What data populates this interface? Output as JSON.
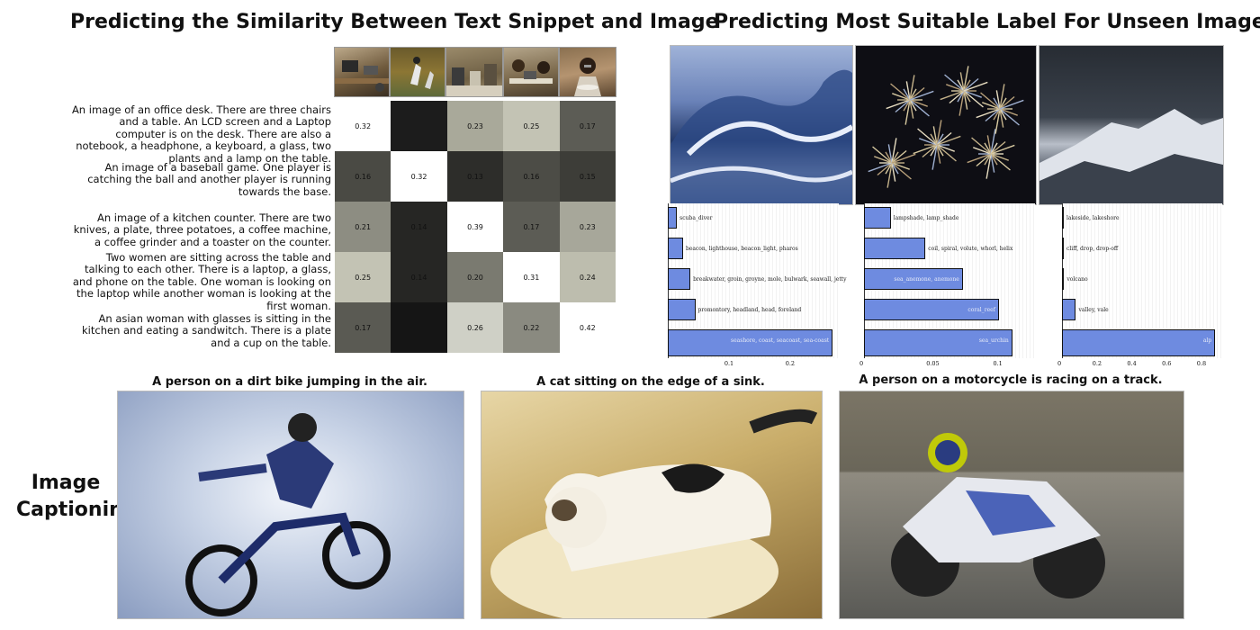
{
  "titles": {
    "similarity": "Predicting the Similarity Between Text Snippet and Image",
    "labels": "Predicting Most Suitable Label For Unseen Image",
    "captioning_line1": "Image",
    "captioning_line2": "Captioning"
  },
  "similarity": {
    "snippets": [
      "An image of an office desk. There are three chairs and a table. An LCD screen and a Laptop computer is on the desk. There are also a notebook, a headphone, a keyboard, a glass, two plants and a lamp on the table.",
      "An image of a baseball game. One player is catching the ball and another player is running towards the base.",
      "An image of a kitchen counter. There are two knives, a plate, three potatoes, a coffee machine, a coffee grinder and a toaster on the counter.",
      "Two women are sitting across the table and talking to each other. There is a laptop, a glass, and phone on the table. One woman is looking on the laptop while another woman is looking at the first woman.",
      "An asian woman with glasses is sitting in the kitchen and eating a sandwitch. There is a plate and a cup on the table."
    ],
    "matrix": [
      [
        "0.32",
        "",
        "0.23",
        "0.25",
        "0.17"
      ],
      [
        "0.16",
        "0.32",
        "0.13",
        "0.16",
        "0.15"
      ],
      [
        "0.21",
        "0.14",
        "0.39",
        "0.17",
        "0.23"
      ],
      [
        "0.25",
        "0.14",
        "0.20",
        "0.31",
        "0.24"
      ],
      [
        "0.17",
        "",
        "0.26",
        "0.22",
        "0.42"
      ]
    ],
    "shades": [
      [
        "#ffffff",
        "#1c1c1c",
        "#a9a99a",
        "#c3c3b4",
        "#5c5c55"
      ],
      [
        "#4a4a44",
        "#ffffff",
        "#2d2d2a",
        "#4c4c46",
        "#3d3d38"
      ],
      [
        "#8d8d82",
        "#262624",
        "#ffffff",
        "#5c5c55",
        "#a7a79a"
      ],
      [
        "#c3c3b4",
        "#262624",
        "#7a7a70",
        "#ffffff",
        "#bdbdae"
      ],
      [
        "#5a5a53",
        "#151515",
        "#cfd0c6",
        "#8a8a80",
        "#ffffff"
      ]
    ]
  },
  "label_charts": [
    {
      "image": "ocean-wave",
      "labels": [
        "scuba_diver",
        "beacon, lighthouse, beacon_light, pharos",
        "breakwater, groin, groyne, mole, bulwark, seawall, jetty",
        "promontory, headland, head, foreland",
        "seashore, coast, seacoast, sea-coast"
      ],
      "values": [
        0.015,
        0.025,
        0.037,
        0.045,
        0.27
      ],
      "ticks": [
        "0.1",
        "0.2"
      ],
      "tick_values": [
        0.1,
        0.2
      ],
      "xmax": 0.28
    },
    {
      "image": "fireworks",
      "labels": [
        "lampshade, lamp_shade",
        "coil, spiral, volute, whorl, helix",
        "sea_anemone, anemone",
        "coral_reef",
        "sea_urchin"
      ],
      "values": [
        0.02,
        0.046,
        0.074,
        0.101,
        0.111
      ],
      "ticks": [
        "0",
        "0.05",
        "0.1"
      ],
      "tick_values": [
        0,
        0.05,
        0.1
      ],
      "xmax": 0.128
    },
    {
      "image": "snowy-mountain",
      "labels": [
        "lakeside, lakeshore",
        "cliff, drop, drop-off",
        "volcano",
        "valley, vale",
        "alp"
      ],
      "values": [
        0.005,
        0.008,
        0.012,
        0.08,
        0.88
      ],
      "ticks": [
        "0",
        "0.2",
        "0.4",
        "0.6",
        "0.8"
      ],
      "tick_values": [
        0,
        0.2,
        0.4,
        0.6,
        0.8
      ],
      "xmax": 0.92
    }
  ],
  "captions": [
    "A person on a dirt bike jumping in the air.",
    "A cat sitting on the edge of a sink.",
    "A person on a motorcycle is racing on a track."
  ]
}
